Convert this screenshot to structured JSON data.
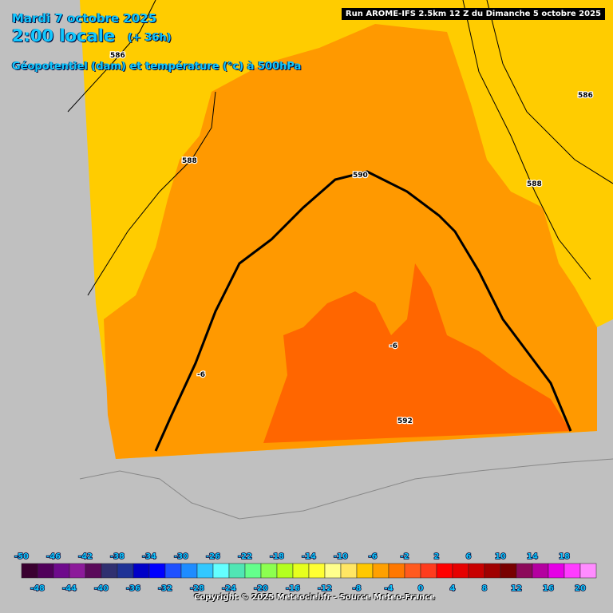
{
  "header": {
    "date": "Mardi 7 octobre 2025",
    "time": "2:00 locale",
    "lead": "(+ 36h)",
    "field": "Géopotentiel (dam) et température (°c) à 500hPa"
  },
  "run": "Run AROME-IFS 2.5km 12 Z du Dimanche 5 octobre 2025",
  "contour_labels": [
    "586",
    "588",
    "590",
    "592",
    "586",
    "588",
    "-6",
    "-6"
  ],
  "legend": {
    "top_labels": [
      -50,
      -46,
      -42,
      -38,
      -34,
      -30,
      -26,
      -22,
      -18,
      -14,
      -10,
      -6,
      -2,
      2,
      6,
      10,
      14,
      18
    ],
    "bottom_labels": [
      -48,
      -44,
      -40,
      -36,
      -32,
      -28,
      -24,
      -20,
      -16,
      -12,
      -8,
      -4,
      0,
      4,
      8,
      12,
      16,
      20
    ],
    "colors": [
      "#3a0030",
      "#50005a",
      "#6e0a8c",
      "#8c1a9a",
      "#5a0a5a",
      "#303070",
      "#1e3296",
      "#0000c8",
      "#0000ff",
      "#1e50ff",
      "#1e8cff",
      "#32c8ff",
      "#64ffff",
      "#50e6b4",
      "#64ff8c",
      "#8cff50",
      "#b4ff1e",
      "#e6ff1e",
      "#ffff32",
      "#ffff8c",
      "#ffe664",
      "#ffc800",
      "#ffa000",
      "#ff7800",
      "#ff5a1e",
      "#ff3c1e",
      "#ff0000",
      "#e60000",
      "#c80000",
      "#a00000",
      "#780000",
      "#8c0a5a",
      "#b400a0",
      "#e600e6",
      "#ff3cff",
      "#ff8cff"
    ]
  },
  "copyright": "Copyright © 2025 Meteociel.fr - Source Meteo-France"
}
